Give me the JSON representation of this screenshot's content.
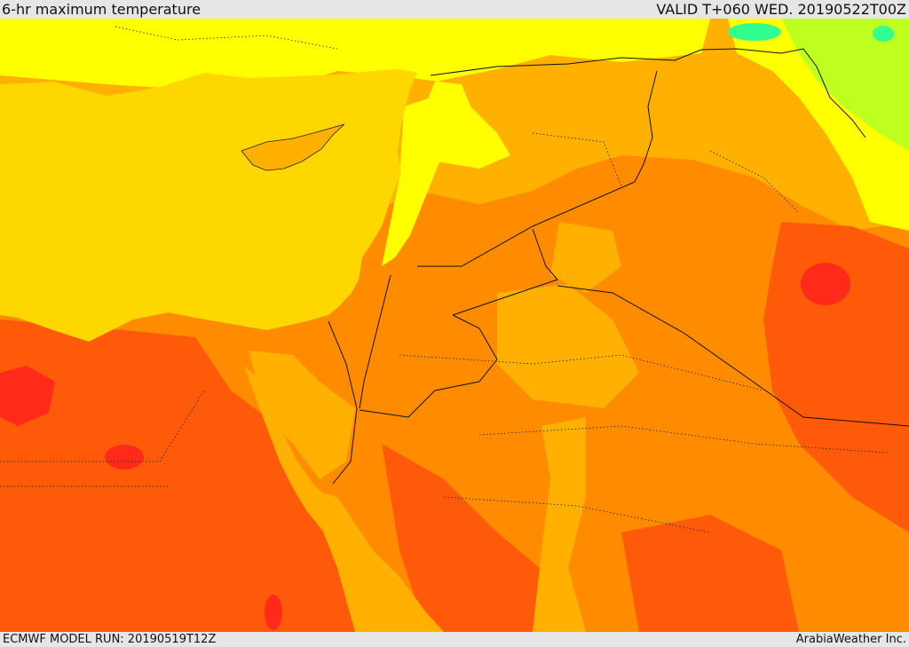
{
  "header": {
    "title": "6-hr maximum temperature",
    "valid": "VALID T+060 WED. 20190522T00Z"
  },
  "footer": {
    "model_run": "ECMWF MODEL RUN: 20190519T12Z",
    "credit": "ArabiaWeather Inc."
  },
  "colors": {
    "sea": "#ffd700",
    "warm": "#ffb000",
    "hot": "#ff8c00",
    "very_hot": "#ff5a0a",
    "extreme": "#ff2a1a",
    "mild": "#ffff00",
    "cool": "#bfff20",
    "cold": "#30ff90"
  }
}
